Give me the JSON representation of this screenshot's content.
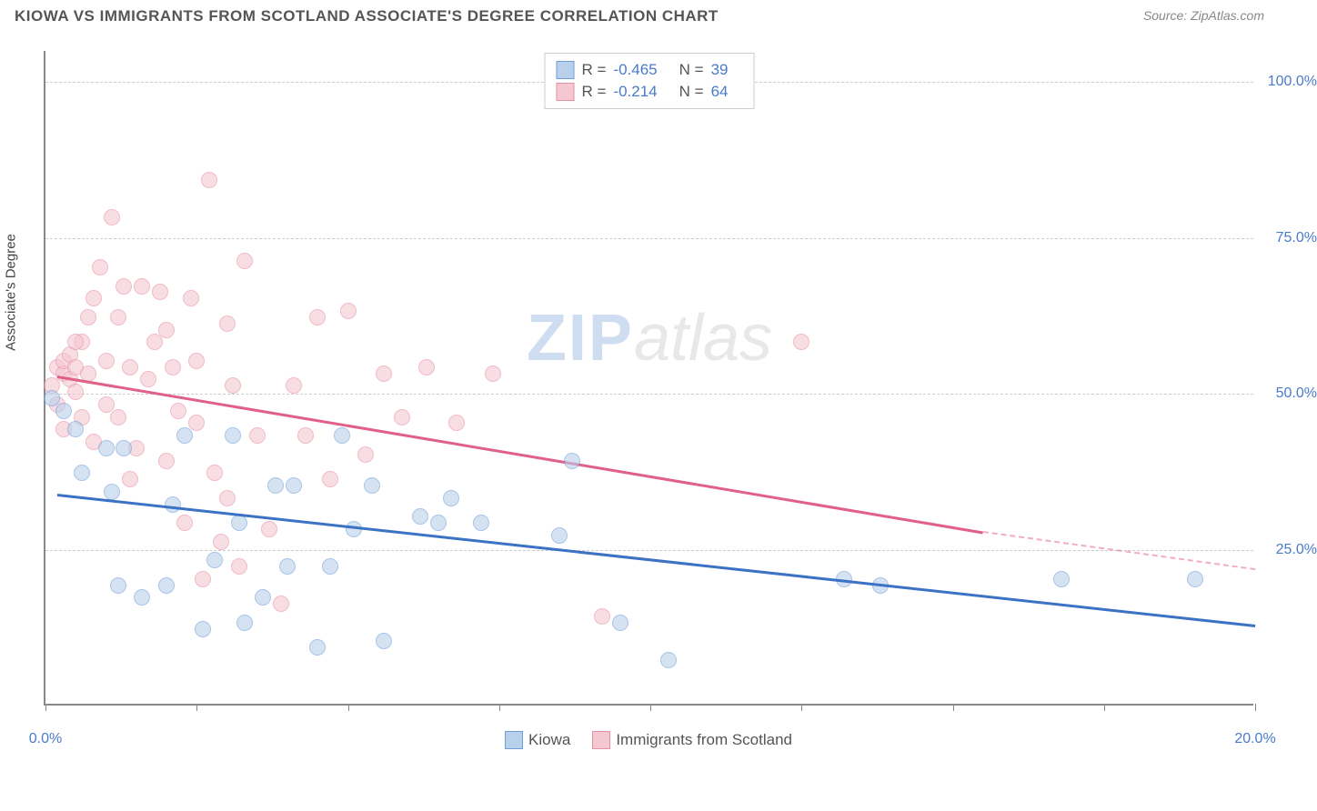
{
  "title": "KIOWA VS IMMIGRANTS FROM SCOTLAND ASSOCIATE'S DEGREE CORRELATION CHART",
  "source_label": "Source: ",
  "source_value": "ZipAtlas.com",
  "watermark_zip": "ZIP",
  "watermark_atlas": "atlas",
  "chart": {
    "type": "scatter",
    "background_color": "#ffffff",
    "grid_color": "#cccccc",
    "axis_color": "#888888",
    "y_axis_label": "Associate's Degree",
    "xlim": [
      0,
      20
    ],
    "ylim": [
      0,
      105
    ],
    "y_ticks": [
      {
        "v": 25,
        "label": "25.0%"
      },
      {
        "v": 50,
        "label": "50.0%"
      },
      {
        "v": 75,
        "label": "75.0%"
      },
      {
        "v": 100,
        "label": "100.0%"
      }
    ],
    "x_ticks": [
      0,
      2.5,
      5,
      7.5,
      10,
      12.5,
      15,
      17.5,
      20
    ],
    "x_tick_labels": [
      {
        "v": 0,
        "label": "0.0%"
      },
      {
        "v": 20,
        "label": "20.0%"
      }
    ],
    "series": {
      "blue": {
        "name": "Kiowa",
        "fill": "#b9d0ea",
        "stroke": "#6f9fd8",
        "line_color": "#3b72c4",
        "R_label": "R =",
        "R": "-0.465",
        "N_label": "N =",
        "N": "39",
        "points": [
          {
            "x": 0.1,
            "y": 49
          },
          {
            "x": 0.5,
            "y": 44
          },
          {
            "x": 0.6,
            "y": 37
          },
          {
            "x": 1.0,
            "y": 41
          },
          {
            "x": 1.1,
            "y": 34
          },
          {
            "x": 1.2,
            "y": 19
          },
          {
            "x": 1.3,
            "y": 41
          },
          {
            "x": 1.6,
            "y": 17
          },
          {
            "x": 2.1,
            "y": 32
          },
          {
            "x": 2.3,
            "y": 43
          },
          {
            "x": 2.6,
            "y": 12
          },
          {
            "x": 2.8,
            "y": 23
          },
          {
            "x": 3.1,
            "y": 43
          },
          {
            "x": 3.2,
            "y": 29
          },
          {
            "x": 3.3,
            "y": 13
          },
          {
            "x": 3.6,
            "y": 17
          },
          {
            "x": 3.8,
            "y": 35
          },
          {
            "x": 4.0,
            "y": 22
          },
          {
            "x": 4.1,
            "y": 35
          },
          {
            "x": 4.5,
            "y": 9
          },
          {
            "x": 4.7,
            "y": 22
          },
          {
            "x": 4.9,
            "y": 43
          },
          {
            "x": 5.1,
            "y": 28
          },
          {
            "x": 5.4,
            "y": 35
          },
          {
            "x": 5.6,
            "y": 10
          },
          {
            "x": 6.2,
            "y": 30
          },
          {
            "x": 6.5,
            "y": 29
          },
          {
            "x": 6.7,
            "y": 33
          },
          {
            "x": 7.2,
            "y": 29
          },
          {
            "x": 8.5,
            "y": 27
          },
          {
            "x": 8.7,
            "y": 39
          },
          {
            "x": 9.5,
            "y": 13
          },
          {
            "x": 10.3,
            "y": 7
          },
          {
            "x": 13.2,
            "y": 20
          },
          {
            "x": 13.8,
            "y": 19
          },
          {
            "x": 16.8,
            "y": 20
          },
          {
            "x": 19.0,
            "y": 20
          },
          {
            "x": 0.3,
            "y": 47
          },
          {
            "x": 2.0,
            "y": 19
          }
        ],
        "trend": {
          "x1": 0.2,
          "y1": 34,
          "x2": 20,
          "y2": 13
        }
      },
      "pink": {
        "name": "Immigrants from Scotland",
        "fill": "#f5c7d1",
        "stroke": "#e78fa6",
        "line_color": "#e06088",
        "R_label": "R =",
        "R": "-0.214",
        "N_label": "N =",
        "N": "64",
        "points": [
          {
            "x": 0.2,
            "y": 54
          },
          {
            "x": 0.3,
            "y": 53
          },
          {
            "x": 0.3,
            "y": 55
          },
          {
            "x": 0.4,
            "y": 52
          },
          {
            "x": 0.4,
            "y": 56
          },
          {
            "x": 0.5,
            "y": 54
          },
          {
            "x": 0.5,
            "y": 50
          },
          {
            "x": 0.6,
            "y": 58
          },
          {
            "x": 0.6,
            "y": 46
          },
          {
            "x": 0.7,
            "y": 53
          },
          {
            "x": 0.8,
            "y": 65
          },
          {
            "x": 0.8,
            "y": 42
          },
          {
            "x": 0.9,
            "y": 70
          },
          {
            "x": 1.0,
            "y": 55
          },
          {
            "x": 1.1,
            "y": 78
          },
          {
            "x": 1.2,
            "y": 62
          },
          {
            "x": 1.2,
            "y": 46
          },
          {
            "x": 1.3,
            "y": 67
          },
          {
            "x": 1.4,
            "y": 54
          },
          {
            "x": 1.5,
            "y": 41
          },
          {
            "x": 1.6,
            "y": 67
          },
          {
            "x": 1.7,
            "y": 52
          },
          {
            "x": 1.8,
            "y": 58
          },
          {
            "x": 1.9,
            "y": 66
          },
          {
            "x": 2.0,
            "y": 39
          },
          {
            "x": 2.1,
            "y": 54
          },
          {
            "x": 2.2,
            "y": 47
          },
          {
            "x": 2.3,
            "y": 29
          },
          {
            "x": 2.4,
            "y": 65
          },
          {
            "x": 2.5,
            "y": 45
          },
          {
            "x": 2.6,
            "y": 20
          },
          {
            "x": 2.7,
            "y": 84
          },
          {
            "x": 2.8,
            "y": 37
          },
          {
            "x": 2.9,
            "y": 26
          },
          {
            "x": 3.0,
            "y": 61
          },
          {
            "x": 3.1,
            "y": 51
          },
          {
            "x": 3.2,
            "y": 22
          },
          {
            "x": 3.3,
            "y": 71
          },
          {
            "x": 3.5,
            "y": 43
          },
          {
            "x": 3.7,
            "y": 28
          },
          {
            "x": 3.9,
            "y": 16
          },
          {
            "x": 4.1,
            "y": 51
          },
          {
            "x": 4.3,
            "y": 43
          },
          {
            "x": 4.5,
            "y": 62
          },
          {
            "x": 4.7,
            "y": 36
          },
          {
            "x": 5.0,
            "y": 63
          },
          {
            "x": 5.3,
            "y": 40
          },
          {
            "x": 5.6,
            "y": 53
          },
          {
            "x": 5.9,
            "y": 46
          },
          {
            "x": 6.3,
            "y": 54
          },
          {
            "x": 6.8,
            "y": 45
          },
          {
            "x": 7.4,
            "y": 53
          },
          {
            "x": 9.2,
            "y": 14
          },
          {
            "x": 12.5,
            "y": 58
          },
          {
            "x": 0.2,
            "y": 48
          },
          {
            "x": 0.3,
            "y": 44
          },
          {
            "x": 0.5,
            "y": 58
          },
          {
            "x": 0.7,
            "y": 62
          },
          {
            "x": 1.0,
            "y": 48
          },
          {
            "x": 1.4,
            "y": 36
          },
          {
            "x": 2.0,
            "y": 60
          },
          {
            "x": 2.5,
            "y": 55
          },
          {
            "x": 3.0,
            "y": 33
          },
          {
            "x": 0.1,
            "y": 51
          }
        ],
        "trend": {
          "x1": 0.2,
          "y1": 53,
          "x2": 15.5,
          "y2": 28
        },
        "trend_dash": {
          "x1": 15.5,
          "y1": 28,
          "x2": 20,
          "y2": 22
        }
      }
    }
  }
}
